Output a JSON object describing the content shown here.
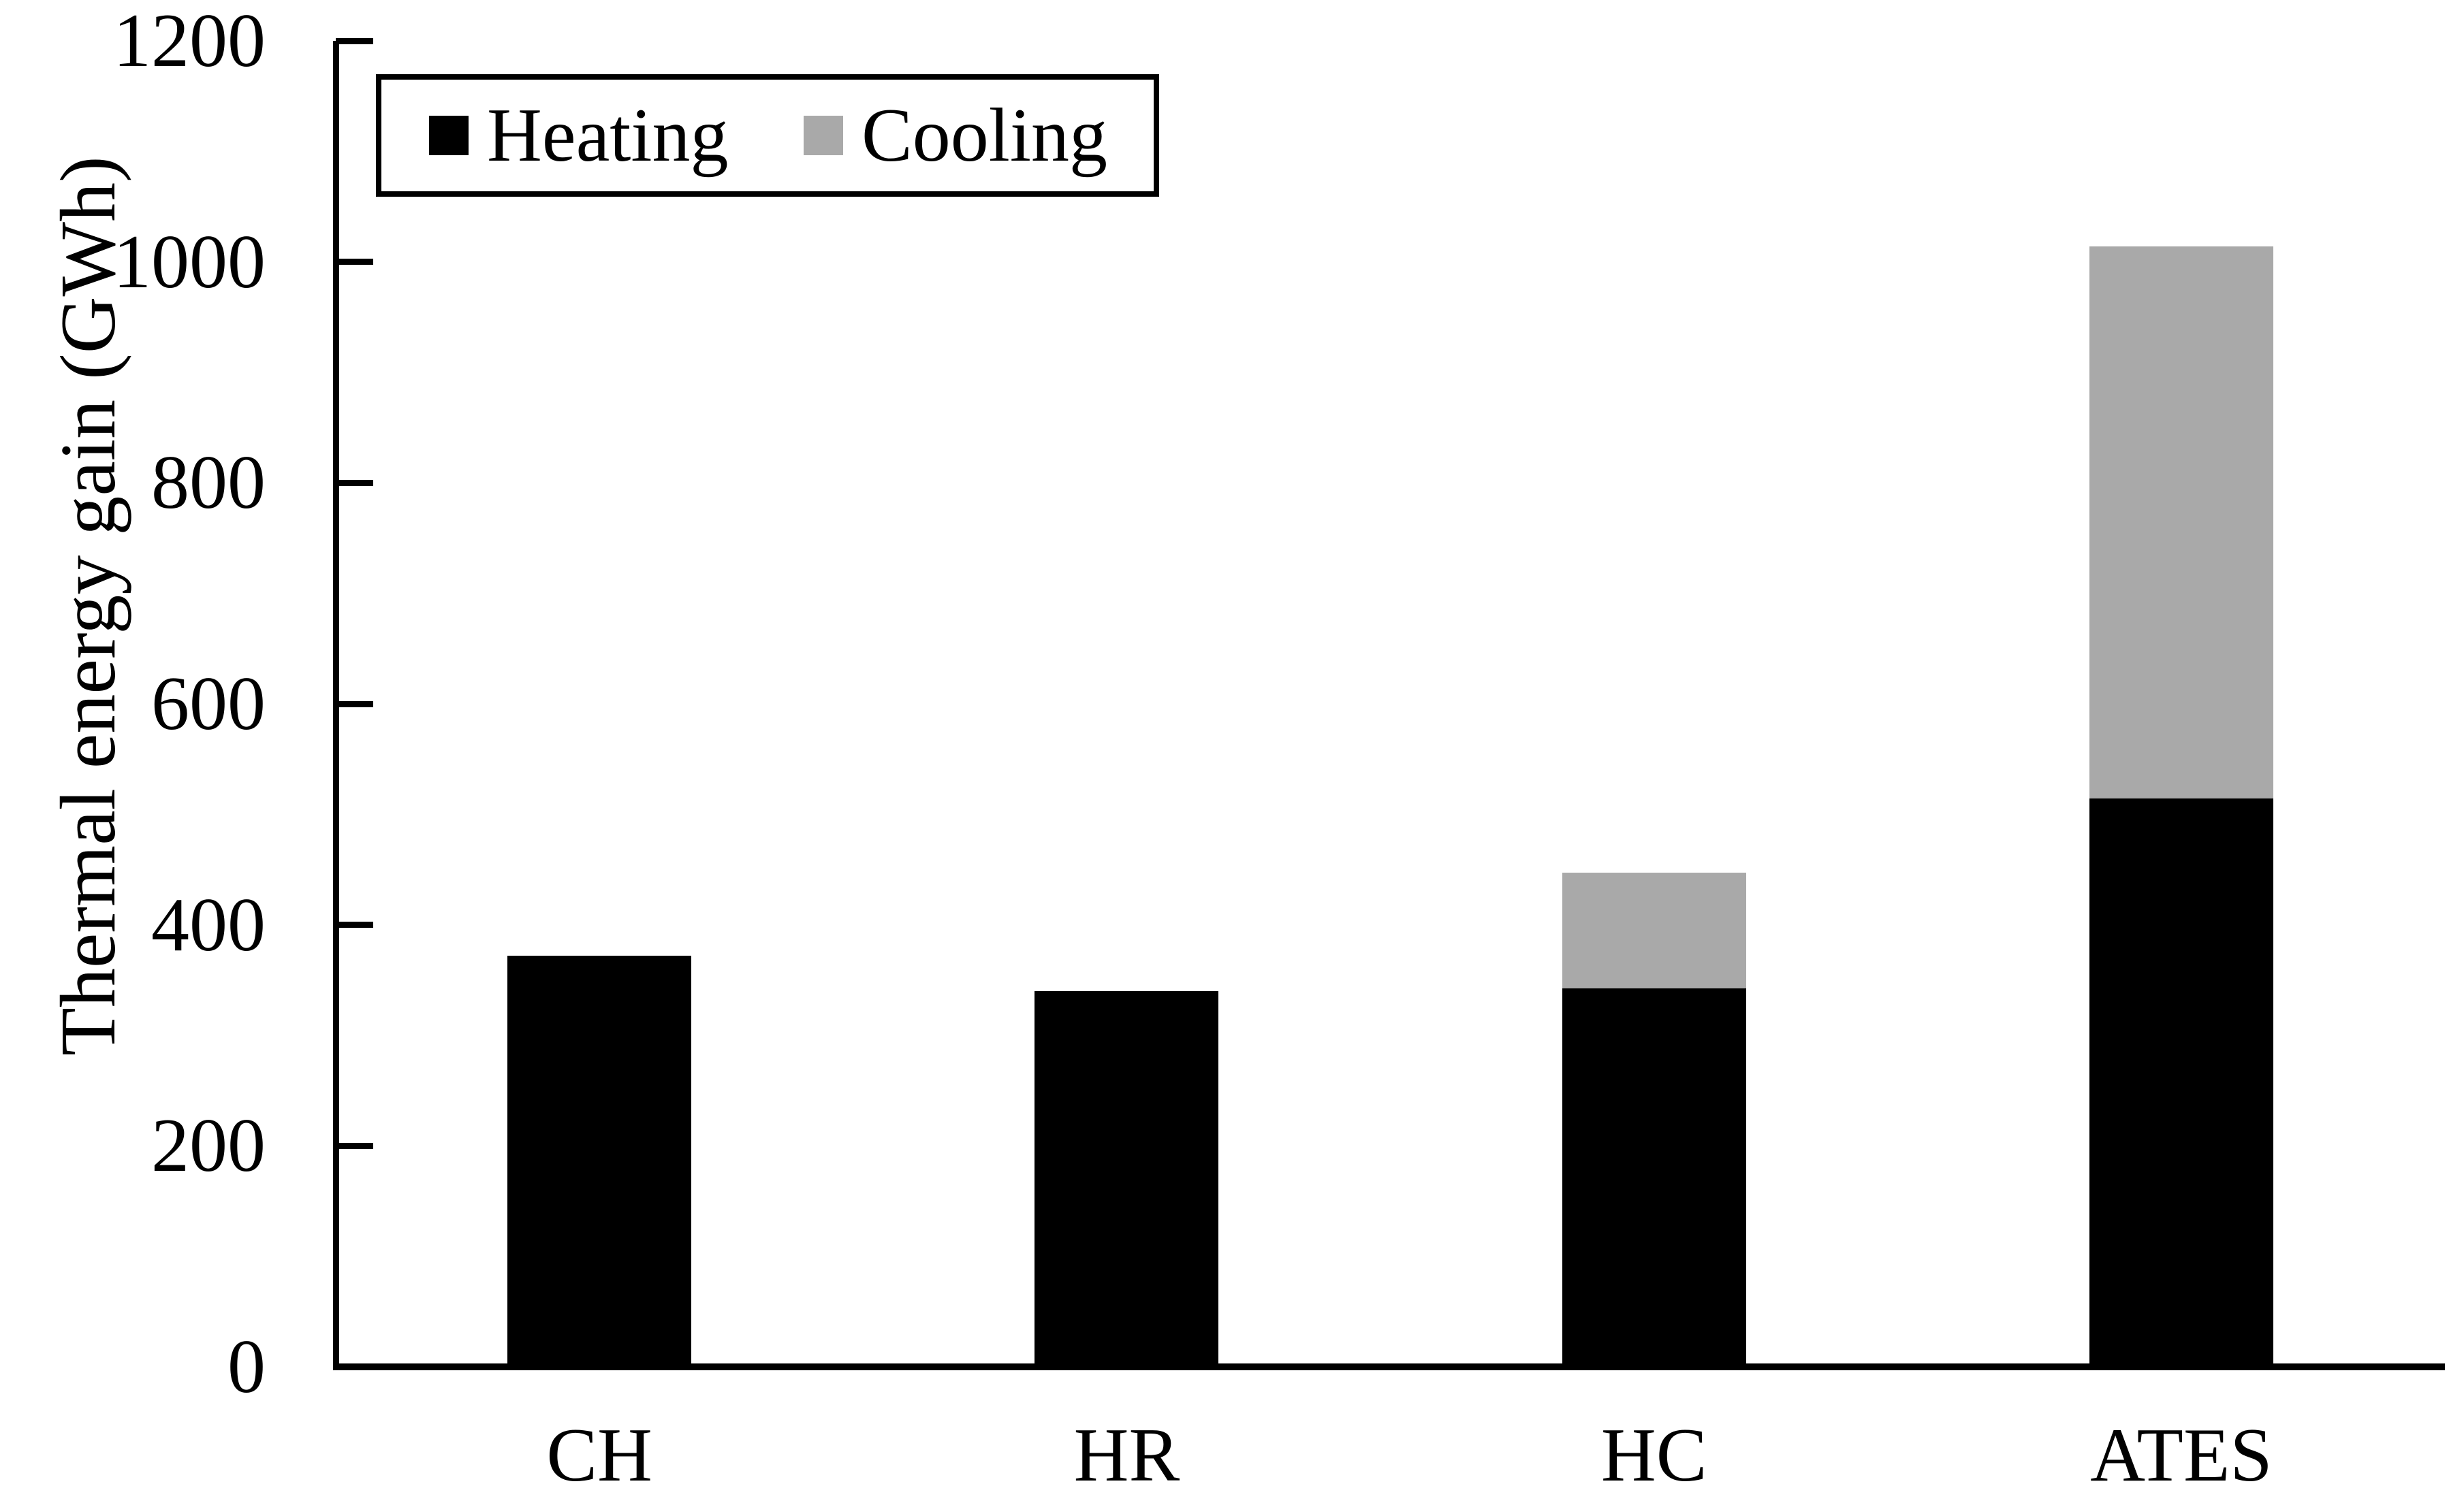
{
  "chart_data": {
    "type": "bar",
    "stacked": true,
    "title": "",
    "categories": [
      "CH",
      "HR",
      "HC",
      "ATES"
    ],
    "series": [
      {
        "name": "Heating",
        "color": "#000000",
        "values": [
          371,
          339,
          341,
          513
        ]
      },
      {
        "name": "Cooling",
        "color": "#A9A9A9",
        "values": [
          0,
          0,
          105,
          500
        ]
      }
    ],
    "xlabel": "",
    "ylabel": "Thermal energy gain (GWh)",
    "ylim": [
      0,
      1200
    ],
    "yticks": [
      0,
      200,
      400,
      600,
      800,
      1000,
      1200
    ],
    "grid": false,
    "legend_position": "top-left",
    "axis_color": "#000000",
    "background_color": "#FFFFFF"
  }
}
